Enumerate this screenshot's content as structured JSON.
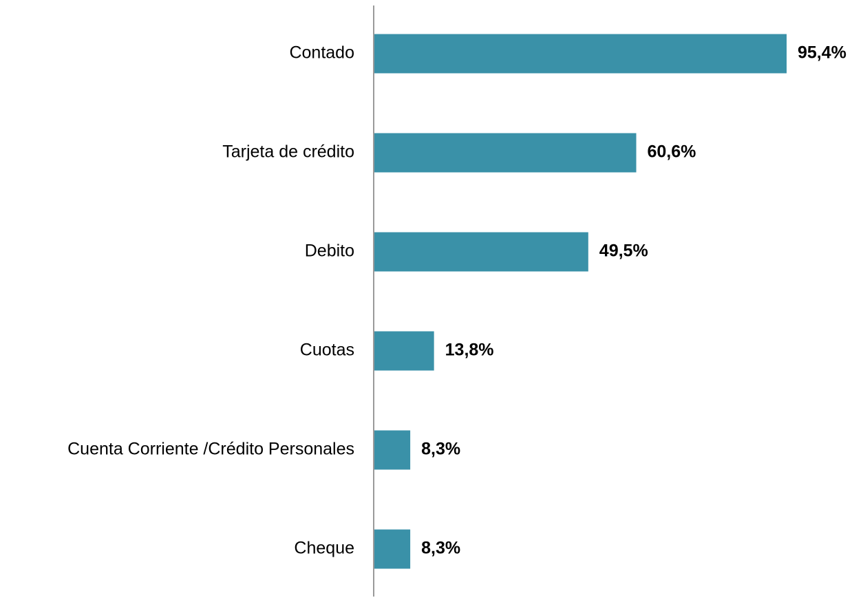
{
  "chart_data": {
    "type": "bar",
    "orientation": "horizontal",
    "categories": [
      "Contado",
      "Tarjeta de crédito",
      "Debito",
      "Cuotas",
      "Cuenta Corriente /Crédito Personales",
      "Cheque"
    ],
    "values": [
      95.4,
      60.6,
      49.5,
      13.8,
      8.3,
      8.3
    ],
    "value_labels": [
      "95,4%",
      "60,6%",
      "49,5%",
      "13,8%",
      "8,3%",
      "8,3%"
    ],
    "color": "#3a91a8"
  }
}
